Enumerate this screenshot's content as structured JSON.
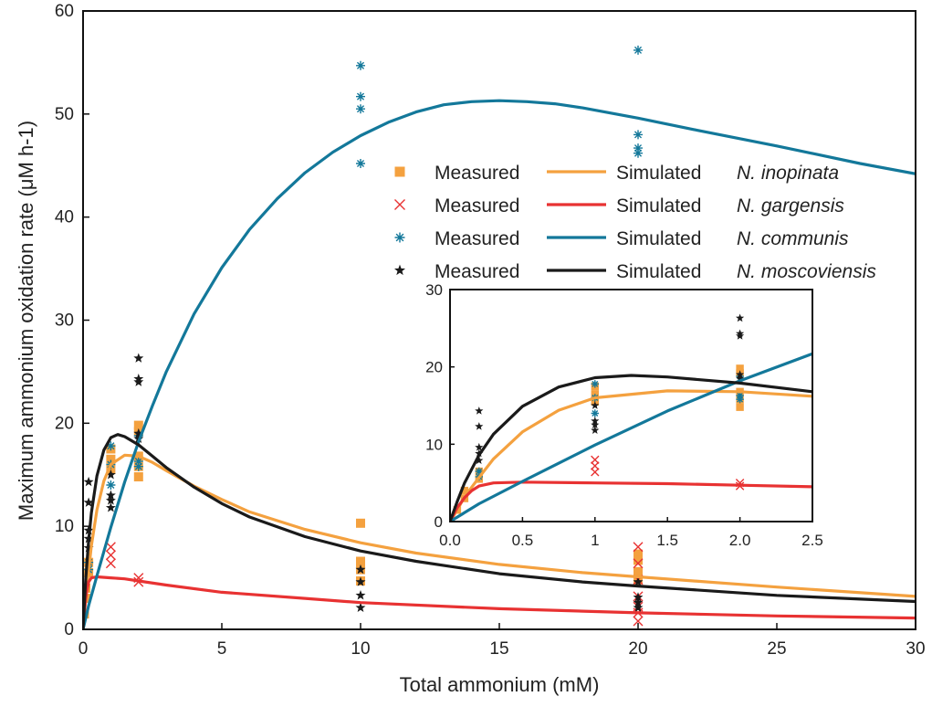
{
  "chart_data": {
    "type": "scatter",
    "xlabel": "Total ammonium (mM)",
    "ylabel": "Maximum ammonium oxidation rate (μM h-1)",
    "xlim": [
      0,
      30
    ],
    "ylim": [
      0,
      60
    ],
    "xticks": [
      "0",
      "5",
      "10",
      "15",
      "20",
      "25",
      "30"
    ],
    "yticks": [
      "0",
      "10",
      "20",
      "30",
      "40",
      "50",
      "60"
    ],
    "legend": {
      "placement": "top-right",
      "measured_label": "Measured",
      "simulated_label": "Simulated"
    },
    "series": [
      {
        "name": "N. inopinata",
        "color": "#F4A13F",
        "marker": "square",
        "measured": [
          [
            0.05,
            1.5
          ],
          [
            0.1,
            3
          ],
          [
            0.1,
            4
          ],
          [
            0.2,
            5.5
          ],
          [
            0.2,
            6.5
          ],
          [
            1,
            15.5
          ],
          [
            1,
            16.5
          ],
          [
            1,
            17.5
          ],
          [
            2,
            14.8
          ],
          [
            2,
            15.8
          ],
          [
            2,
            16.8
          ],
          [
            2,
            19.2
          ],
          [
            2,
            19.8
          ],
          [
            10,
            10.3
          ],
          [
            10,
            6.6
          ],
          [
            10,
            5.8
          ],
          [
            10,
            4.7
          ],
          [
            20,
            7.3
          ],
          [
            20,
            6.7
          ],
          [
            20,
            5.6
          ],
          [
            20,
            4.8
          ]
        ],
        "simulated": [
          [
            0,
            0
          ],
          [
            0.05,
            1.5
          ],
          [
            0.1,
            3.2
          ],
          [
            0.2,
            5.7
          ],
          [
            0.3,
            8.1
          ],
          [
            0.5,
            11.6
          ],
          [
            0.75,
            14.4
          ],
          [
            1,
            16
          ],
          [
            1.5,
            16.9
          ],
          [
            2,
            16.8
          ],
          [
            2.5,
            16.2
          ],
          [
            3,
            15.4
          ],
          [
            4,
            13.9
          ],
          [
            5,
            12.6
          ],
          [
            6,
            11.4
          ],
          [
            8,
            9.7
          ],
          [
            10,
            8.4
          ],
          [
            12,
            7.4
          ],
          [
            15,
            6.3
          ],
          [
            18,
            5.5
          ],
          [
            20,
            5.1
          ],
          [
            25,
            4.1
          ],
          [
            30,
            3.2
          ]
        ]
      },
      {
        "name": "N. gargensis",
        "color": "#E83232",
        "marker": "x",
        "measured": [
          [
            1,
            8
          ],
          [
            1,
            7.2
          ],
          [
            1,
            6.4
          ],
          [
            2,
            5
          ],
          [
            2,
            4.6
          ],
          [
            20,
            8
          ],
          [
            20,
            6.4
          ],
          [
            20,
            4.8
          ],
          [
            20,
            3.2
          ],
          [
            20,
            2.2
          ],
          [
            20,
            1.6
          ],
          [
            20,
            0.8
          ]
        ],
        "simulated": [
          [
            0,
            0
          ],
          [
            0.05,
            1.8
          ],
          [
            0.1,
            3.1
          ],
          [
            0.15,
            4
          ],
          [
            0.2,
            4.6
          ],
          [
            0.3,
            5
          ],
          [
            0.5,
            5.1
          ],
          [
            1,
            5
          ],
          [
            1.5,
            4.9
          ],
          [
            2,
            4.7
          ],
          [
            3,
            4.3
          ],
          [
            5,
            3.6
          ],
          [
            8,
            3
          ],
          [
            10,
            2.6
          ],
          [
            15,
            2
          ],
          [
            20,
            1.6
          ],
          [
            25,
            1.3
          ],
          [
            30,
            1.1
          ]
        ]
      },
      {
        "name": "N. communis",
        "color": "#13789A",
        "marker": "asterisk",
        "measured": [
          [
            0.2,
            5.8
          ],
          [
            0.2,
            6.5
          ],
          [
            1,
            14
          ],
          [
            1,
            16
          ],
          [
            1,
            17.8
          ],
          [
            2,
            15.8
          ],
          [
            2,
            16.3
          ],
          [
            2,
            18.8
          ],
          [
            10,
            54.7
          ],
          [
            10,
            51.7
          ],
          [
            10,
            50.5
          ],
          [
            10,
            45.2
          ],
          [
            20,
            56.2
          ],
          [
            20,
            48
          ],
          [
            20,
            46.7
          ],
          [
            20,
            46.2
          ]
        ],
        "simulated": [
          [
            0,
            0
          ],
          [
            0.2,
            2.3
          ],
          [
            0.5,
            5.2
          ],
          [
            1,
            9.9
          ],
          [
            1.5,
            14.3
          ],
          [
            2,
            18.2
          ],
          [
            2.5,
            21.7
          ],
          [
            3,
            25
          ],
          [
            4,
            30.6
          ],
          [
            5,
            35.1
          ],
          [
            6,
            38.8
          ],
          [
            7,
            41.8
          ],
          [
            8,
            44.3
          ],
          [
            9,
            46.3
          ],
          [
            10,
            47.9
          ],
          [
            11,
            49.2
          ],
          [
            12,
            50.2
          ],
          [
            13,
            50.9
          ],
          [
            14,
            51.2
          ],
          [
            15,
            51.3
          ],
          [
            16,
            51.2
          ],
          [
            17,
            51
          ],
          [
            18,
            50.6
          ],
          [
            20,
            49.6
          ],
          [
            22,
            48.5
          ],
          [
            25,
            46.9
          ],
          [
            28,
            45.2
          ],
          [
            30,
            44.2
          ]
        ]
      },
      {
        "name": "N. moscoviensis",
        "color": "#1a1a1a",
        "marker": "star",
        "measured": [
          [
            0.2,
            14.3
          ],
          [
            0.2,
            12.3
          ],
          [
            0.2,
            9.6
          ],
          [
            0.2,
            8.8
          ],
          [
            0.2,
            7.9
          ],
          [
            1,
            15
          ],
          [
            1,
            13
          ],
          [
            1,
            12.5
          ],
          [
            1,
            11.8
          ],
          [
            2,
            26.3
          ],
          [
            2,
            24.3
          ],
          [
            2,
            24
          ],
          [
            2,
            19
          ],
          [
            2,
            18.5
          ],
          [
            10,
            5.8
          ],
          [
            10,
            4.6
          ],
          [
            10,
            3.3
          ],
          [
            10,
            2.1
          ],
          [
            20,
            4.6
          ],
          [
            20,
            3.1
          ],
          [
            20,
            2.6
          ],
          [
            20,
            2.1
          ]
        ],
        "simulated": [
          [
            0,
            0
          ],
          [
            0.05,
            2.6
          ],
          [
            0.1,
            5
          ],
          [
            0.2,
            8.6
          ],
          [
            0.3,
            11.3
          ],
          [
            0.5,
            14.9
          ],
          [
            0.75,
            17.4
          ],
          [
            1,
            18.6
          ],
          [
            1.25,
            18.9
          ],
          [
            1.5,
            18.7
          ],
          [
            2,
            17.9
          ],
          [
            2.5,
            16.8
          ],
          [
            3,
            15.7
          ],
          [
            4,
            13.8
          ],
          [
            5,
            12.2
          ],
          [
            6,
            10.9
          ],
          [
            8,
            9
          ],
          [
            10,
            7.6
          ],
          [
            12,
            6.6
          ],
          [
            15,
            5.4
          ],
          [
            18,
            4.6
          ],
          [
            20,
            4.2
          ],
          [
            25,
            3.3
          ],
          [
            30,
            2.7
          ]
        ]
      }
    ],
    "inset": {
      "xlim": [
        0,
        2.5
      ],
      "ylim": [
        0,
        30
      ],
      "xticks": [
        "0.0",
        "0.5",
        "1",
        "1.5",
        "2.0",
        "2.5"
      ],
      "yticks": [
        "0",
        "10",
        "20",
        "30"
      ]
    }
  }
}
